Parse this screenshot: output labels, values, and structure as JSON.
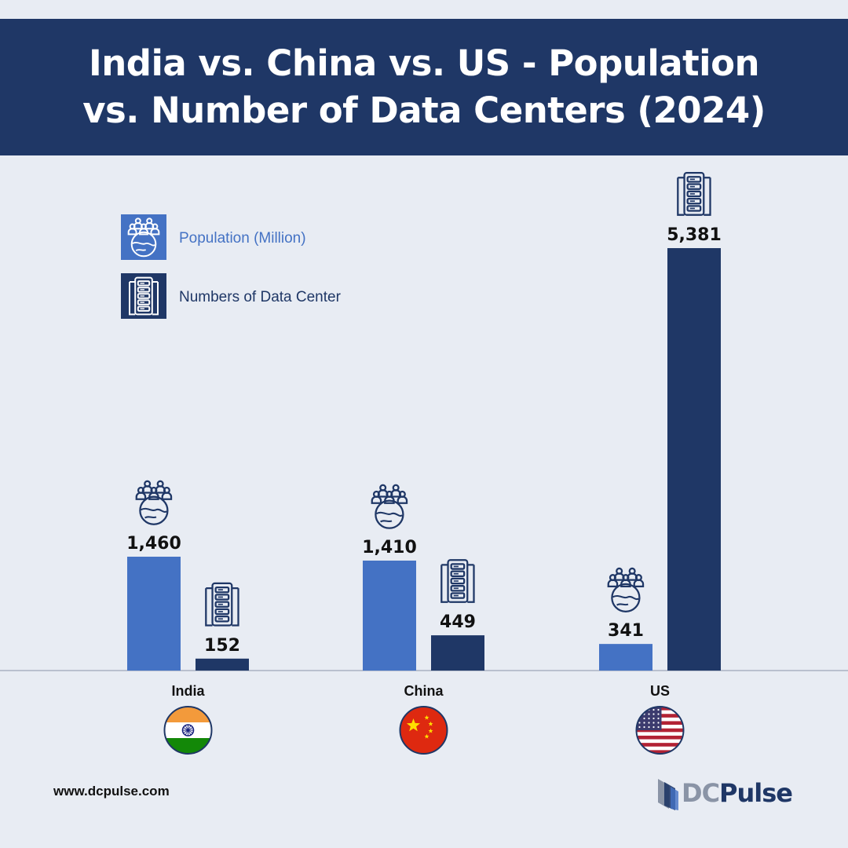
{
  "colors": {
    "header_bg": "#1f3766",
    "population": "#4472c4",
    "data_centers": "#1f3766",
    "background": "#e8ecf3"
  },
  "footer": {
    "url": "www.dcpulse.com"
  },
  "brand": {
    "dc": "DC",
    "pulse": "Pulse"
  },
  "chart_data": {
    "type": "bar",
    "title": "India vs. China vs. US - Population vs. Number of Data Centers (2024)",
    "title_lines": [
      "India vs. China vs. US - Population",
      "vs. Number of Data Centers (2024)"
    ],
    "categories": [
      "India",
      "China",
      "US"
    ],
    "series": [
      {
        "name": "Population (Million)",
        "values": [
          1460,
          1410,
          341
        ],
        "labels": [
          "1,460",
          "1,410",
          "341"
        ],
        "color": "#4472c4",
        "icon": "people-globe-icon"
      },
      {
        "name": "Numbers of Data Center",
        "values": [
          152,
          449,
          5381
        ],
        "labels": [
          "152",
          "449",
          "5,381"
        ],
        "color": "#1f3766",
        "icon": "server-rack-icon"
      }
    ],
    "category_icons": [
      "india-flag-icon",
      "china-flag-icon",
      "us-flag-icon"
    ],
    "xlabel": "",
    "ylabel": "",
    "ylim": [
      0,
      6000
    ],
    "grid": false,
    "legend": "top-left"
  }
}
